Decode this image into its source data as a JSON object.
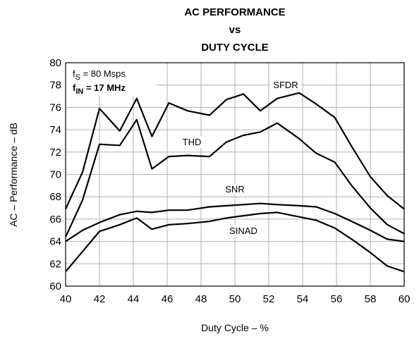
{
  "chart_data": {
    "type": "line",
    "title": [
      "AC PERFORMANCE",
      "vs",
      "DUTY CYCLE"
    ],
    "x_label": "Duty Cycle – %",
    "y_label": "AC – Performance – dB",
    "x": [
      40,
      41,
      42,
      43.2,
      44.2,
      45.1,
      46.1,
      47.2,
      48.5,
      49.5,
      50.5,
      51.5,
      52.5,
      53.8,
      54.8,
      55.9,
      56.9,
      58,
      59,
      60
    ],
    "series": [
      {
        "name": "SFDR",
        "color": "#000000",
        "values": [
          66.9,
          70.2,
          75.9,
          73.9,
          76.8,
          73.4,
          76.4,
          75.7,
          75.3,
          76.7,
          77.2,
          75.7,
          76.8,
          77.3,
          76.3,
          75.1,
          72.5,
          69.8,
          68.1,
          66.9
        ]
      },
      {
        "name": "THD",
        "color": "#000000",
        "values": [
          64.4,
          67.7,
          72.7,
          72.6,
          74.9,
          70.5,
          71.6,
          71.7,
          71.6,
          72.9,
          73.5,
          73.8,
          74.6,
          73.2,
          71.9,
          71.1,
          69.0,
          67.0,
          65.5,
          64.7
        ]
      },
      {
        "name": "SNR",
        "color": "#000000",
        "values": [
          64.0,
          65.0,
          65.7,
          66.4,
          66.7,
          66.6,
          66.8,
          66.8,
          67.1,
          67.2,
          67.3,
          67.4,
          67.3,
          67.2,
          67.1,
          66.5,
          65.8,
          65.0,
          64.2,
          64.0
        ]
      },
      {
        "name": "SINAD",
        "color": "#000000",
        "values": [
          61.3,
          63.1,
          64.9,
          65.5,
          66.1,
          65.1,
          65.5,
          65.6,
          65.8,
          66.1,
          66.3,
          66.5,
          66.6,
          66.2,
          65.9,
          65.2,
          64.2,
          63.0,
          61.8,
          61.3
        ]
      }
    ],
    "conditions": [
      {
        "text": "f",
        "subscript": "S",
        "suffix": " = 80 Msps",
        "bold": false
      },
      {
        "text": "f",
        "subscript": "IN",
        "suffix": " = 17 MHz",
        "bold": true
      }
    ],
    "xlim": [
      40,
      60
    ],
    "ylim": [
      60,
      80
    ],
    "xticks": [
      40,
      42,
      44,
      46,
      48,
      50,
      52,
      54,
      56,
      58,
      60
    ],
    "yticks": [
      60,
      62,
      64,
      66,
      68,
      70,
      72,
      74,
      76,
      78,
      80
    ],
    "grid": true,
    "grid_color": "#b0b0b0"
  }
}
